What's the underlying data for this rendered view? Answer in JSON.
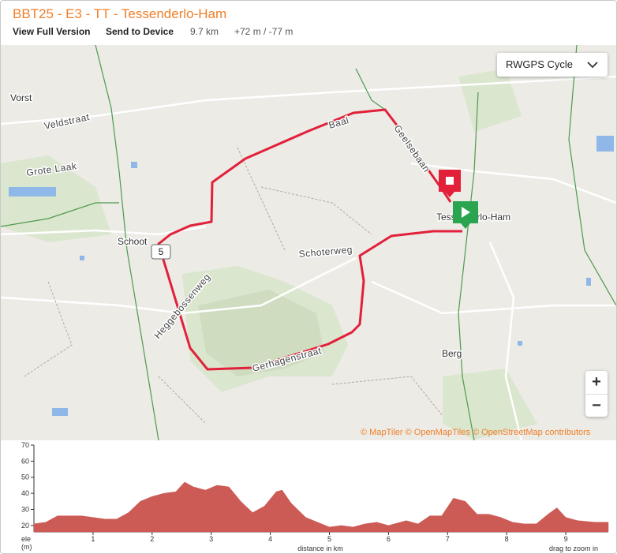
{
  "header": {
    "title": "BBT25 - E3 - TT - Tessenderlo-Ham",
    "links": [
      "View Full Version",
      "Send to Device"
    ],
    "distance": "9.7 km",
    "elevation": "+72 m / -77 m"
  },
  "map": {
    "layer_selector": "RWGPS Cycle",
    "zoom_in": "+",
    "zoom_out": "−",
    "attribution": [
      "© MapTiler",
      "© OpenMapTiles",
      "© OpenStreetMap contributors"
    ],
    "marker_label": "5",
    "place_labels": [
      "Vorst",
      "Schoot",
      "Tessenderlo-Ham",
      "Berg"
    ],
    "street_labels": [
      "Veldstraat",
      "Grote Laak",
      "Baal",
      "Geelsebaan",
      "Schoterweg",
      "Heggebossenweg",
      "Gerhagenstraat"
    ]
  },
  "chart_data": {
    "type": "area",
    "color": "#cd5b55",
    "ylabel": [
      "ele",
      "(m)"
    ],
    "xlabel": "distance in km",
    "note": "drag to zoom in",
    "x": [
      0,
      0.2,
      0.4,
      0.6,
      0.8,
      1.0,
      1.2,
      1.4,
      1.6,
      1.8,
      2.0,
      2.2,
      2.4,
      2.55,
      2.7,
      2.9,
      3.1,
      3.3,
      3.5,
      3.7,
      3.9,
      4.1,
      4.2,
      4.35,
      4.6,
      4.8,
      5.0,
      5.2,
      5.4,
      5.6,
      5.8,
      6.0,
      6.2,
      6.3,
      6.5,
      6.7,
      6.9,
      7.1,
      7.3,
      7.5,
      7.7,
      7.9,
      8.1,
      8.3,
      8.5,
      8.7,
      8.85,
      9.0,
      9.2,
      9.5,
      9.72
    ],
    "values": [
      21,
      22,
      26,
      26,
      26,
      25,
      24,
      24,
      28,
      35,
      38,
      40,
      41,
      47,
      44,
      42,
      45,
      44,
      35,
      28,
      32,
      41,
      42,
      34,
      25,
      22,
      19,
      20,
      19,
      21,
      22,
      20,
      22,
      23,
      21,
      26,
      26,
      37,
      35,
      27,
      27,
      25,
      22,
      21,
      21,
      27,
      31,
      25,
      23,
      22,
      22
    ],
    "xlim": [
      0,
      9.72
    ],
    "ylim": [
      16,
      70
    ],
    "xticks": [
      1,
      2,
      3,
      4,
      5,
      6,
      7,
      8,
      9
    ],
    "yticks": [
      20,
      30,
      40,
      50,
      60,
      70
    ]
  }
}
